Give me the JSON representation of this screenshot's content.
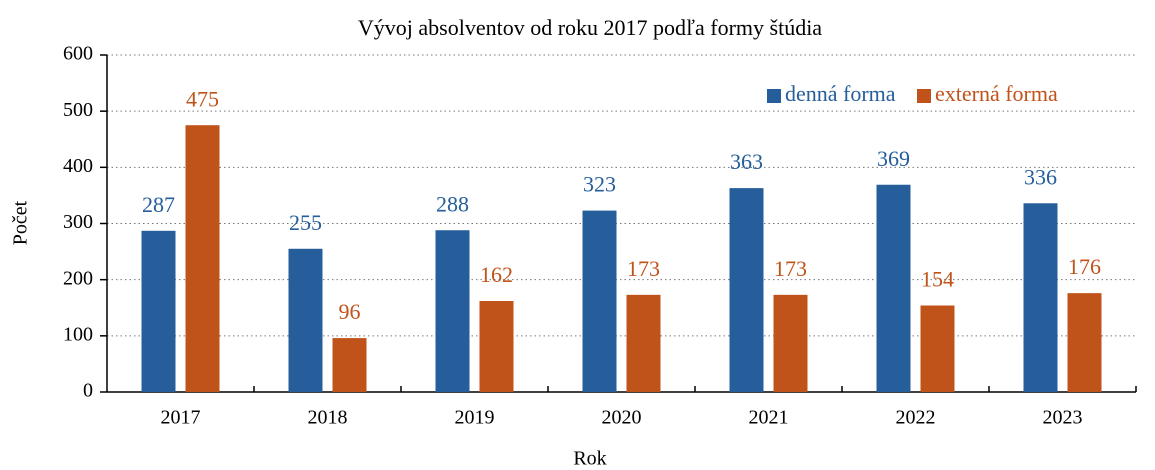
{
  "chart_data": {
    "type": "bar",
    "title": "Vývoj absolventov od roku 2017 podľa formy štúdia",
    "xlabel": "Rok",
    "ylabel": "Počet",
    "categories": [
      "2017",
      "2018",
      "2019",
      "2020",
      "2021",
      "2022",
      "2023"
    ],
    "series": [
      {
        "name": "denná forma",
        "color": "#255e9b",
        "values": [
          287,
          255,
          288,
          323,
          363,
          369,
          336
        ]
      },
      {
        "name": "externá forma",
        "color": "#c0531a",
        "values": [
          475,
          96,
          162,
          173,
          173,
          154,
          176
        ]
      }
    ],
    "ylim": [
      0,
      600
    ],
    "yticks": [
      0,
      100,
      200,
      300,
      400,
      500,
      600
    ],
    "grid": true,
    "legend": "upper right"
  }
}
